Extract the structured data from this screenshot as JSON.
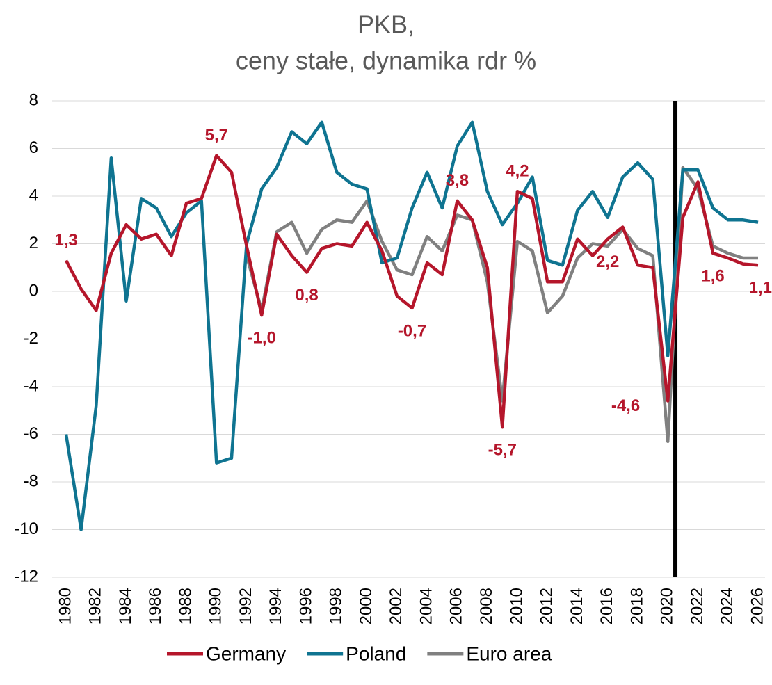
{
  "chart_data": {
    "type": "line",
    "title": [
      "PKB,",
      "ceny stałe, dynamika rdr %"
    ],
    "x": [
      1980,
      1981,
      1982,
      1983,
      1984,
      1985,
      1986,
      1987,
      1988,
      1989,
      1990,
      1991,
      1992,
      1993,
      1994,
      1995,
      1996,
      1997,
      1998,
      1999,
      2000,
      2001,
      2002,
      2003,
      2004,
      2005,
      2006,
      2007,
      2008,
      2009,
      2010,
      2011,
      2012,
      2013,
      2014,
      2015,
      2016,
      2017,
      2018,
      2019,
      2020,
      2021,
      2022,
      2023,
      2024,
      2025,
      2026
    ],
    "xlim": [
      1980,
      2026
    ],
    "xticks": [
      1980,
      1982,
      1984,
      1986,
      1988,
      1990,
      1992,
      1994,
      1996,
      1998,
      2000,
      2002,
      2004,
      2006,
      2008,
      2010,
      2012,
      2014,
      2016,
      2018,
      2020,
      2022,
      2024,
      2026
    ],
    "ylim": [
      -12,
      8
    ],
    "yticks": [
      8,
      6,
      4,
      2,
      0,
      -2,
      -4,
      -6,
      -8,
      -10,
      -12
    ],
    "grid": true,
    "legend": "bottom",
    "vlines": [
      2020.5
    ],
    "series": [
      {
        "name": "Germany",
        "color": "#b5162b",
        "values": [
          1.3,
          0.1,
          -0.8,
          1.6,
          2.8,
          2.2,
          2.4,
          1.5,
          3.7,
          3.9,
          5.7,
          5.0,
          1.9,
          -1.0,
          2.4,
          1.5,
          0.8,
          1.8,
          2.0,
          1.9,
          2.9,
          1.7,
          -0.2,
          -0.7,
          1.2,
          0.7,
          3.8,
          3.0,
          1.0,
          -5.7,
          4.2,
          3.9,
          0.4,
          0.4,
          2.2,
          1.5,
          2.2,
          2.7,
          1.1,
          1.0,
          -4.6,
          3.1,
          4.6,
          1.6,
          1.4,
          1.15,
          1.1
        ],
        "value_labels": [
          "1,3",
          null,
          null,
          null,
          null,
          null,
          null,
          null,
          null,
          null,
          "5,7",
          null,
          null,
          "-1,0",
          null,
          null,
          "0,8",
          null,
          null,
          null,
          null,
          null,
          null,
          "-0,7",
          null,
          null,
          "3,8",
          null,
          null,
          "-5,7",
          "4,2",
          null,
          null,
          null,
          null,
          null,
          "2,2",
          null,
          null,
          null,
          "-4,6",
          null,
          null,
          "1,6",
          null,
          null,
          "1,1"
        ]
      },
      {
        "name": "Poland",
        "color": "#0f7491",
        "values": [
          -6.0,
          -10.0,
          -4.8,
          5.6,
          -0.4,
          3.9,
          3.5,
          2.3,
          3.3,
          3.8,
          -7.2,
          -7.0,
          2.0,
          4.3,
          5.2,
          6.7,
          6.2,
          7.1,
          5.0,
          4.5,
          4.3,
          1.2,
          1.4,
          3.5,
          5.0,
          3.5,
          6.1,
          7.1,
          4.2,
          2.8,
          3.7,
          4.8,
          1.3,
          1.1,
          3.4,
          4.2,
          3.1,
          4.8,
          5.4,
          4.7,
          -2.7,
          5.1,
          5.1,
          3.5,
          3.0,
          3.0,
          2.9
        ]
      },
      {
        "name": "Euro area",
        "color": "#808080",
        "values": [
          null,
          null,
          null,
          null,
          null,
          null,
          null,
          null,
          null,
          null,
          null,
          null,
          1.5,
          -0.8,
          2.5,
          2.9,
          1.6,
          2.6,
          3.0,
          2.9,
          3.8,
          2.1,
          0.9,
          0.7,
          2.3,
          1.7,
          3.2,
          3.0,
          0.4,
          -4.6,
          2.1,
          1.7,
          -0.9,
          -0.2,
          1.4,
          2.0,
          1.9,
          2.6,
          1.8,
          1.5,
          -6.3,
          5.2,
          4.3,
          1.9,
          1.6,
          1.4,
          1.4
        ]
      }
    ]
  }
}
